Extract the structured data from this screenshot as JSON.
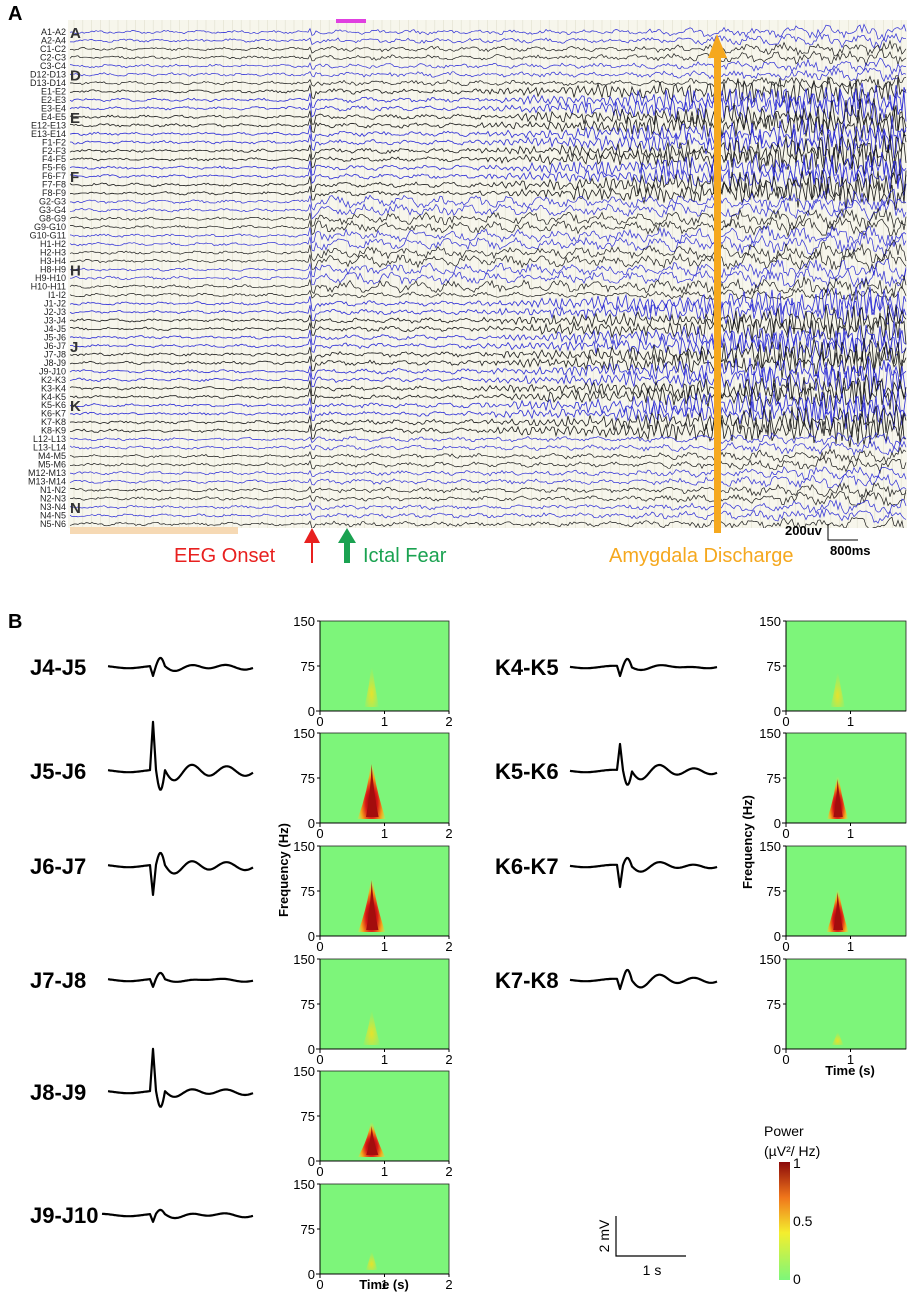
{
  "panel_a": {
    "letter": "A",
    "channels": [
      "A1-A2",
      "A2-A4",
      "C1-C2",
      "C2-C3",
      "C3-C4",
      "D12-D13",
      "D13-D14",
      "E1-E2",
      "E2-E3",
      "E3-E4",
      "E4-E5",
      "E12-E13",
      "E13-E14",
      "F1-F2",
      "F2-F3",
      "F4-F5",
      "F5-F6",
      "F6-F7",
      "F7-F8",
      "F8-F9",
      "G2-G3",
      "G3-G4",
      "G8-G9",
      "G9-G10",
      "G10-G11",
      "H1-H2",
      "H2-H3",
      "H3-H4",
      "H8-H9",
      "H9-H10",
      "H10-H11",
      "I1-I2",
      "J1-J2",
      "J2-J3",
      "J3-J4",
      "J4-J5",
      "J5-J6",
      "J6-J7",
      "J7-J8",
      "J8-J9",
      "J9-J10",
      "K2-K3",
      "K3-K4",
      "K4-K5",
      "K5-K6",
      "K6-K7",
      "K7-K8",
      "K8-K9",
      "L12-L13",
      "L13-L14",
      "M4-M5",
      "M5-M6",
      "M12-M13",
      "M13-M14",
      "N1-N2",
      "N2-N3",
      "N3-N4",
      "N4-N5",
      "N5-N6"
    ],
    "group_letters": [
      {
        "letter": "A",
        "channel": "A1-A2"
      },
      {
        "letter": "D",
        "channel": "D12-D13"
      },
      {
        "letter": "E",
        "channel": "E4-E5"
      },
      {
        "letter": "F",
        "channel": "F6-F7"
      },
      {
        "letter": "H",
        "channel": "H8-H9"
      },
      {
        "letter": "J",
        "channel": "J6-J7"
      },
      {
        "letter": "K",
        "channel": "K5-K6"
      },
      {
        "letter": "N",
        "channel": "N3-N4"
      }
    ],
    "annotations": {
      "eeg_onset": "EEG Onset",
      "ictal_fear": "Ictal Fear",
      "amygdala_discharge": "Amygdala Discharge"
    },
    "scale": {
      "amplitude": "200uv",
      "time": "800ms"
    },
    "colors": {
      "trace_blue": "#2b2bd6",
      "trace_black": "#1a1a1a",
      "background": "#f7f6ec",
      "onset": "#e8201f",
      "fear": "#1aa251",
      "amygdala": "#f5a81e"
    }
  },
  "panel_b": {
    "letter": "B",
    "j_channels": [
      "J4-J5",
      "J5-J6",
      "J6-J7",
      "J7-J8",
      "J8-J9",
      "J9-J10"
    ],
    "k_channels": [
      "K4-K5",
      "K5-K6",
      "K6-K7",
      "K7-K8"
    ],
    "scale_bar": {
      "amplitude": "2 mV",
      "time": "1 s"
    },
    "colorbar": {
      "title_line1": "Power",
      "title_line2": "(µV²/ Hz)",
      "ticks": [
        "1",
        "0.5",
        "0"
      ]
    }
  },
  "chart_data": [
    {
      "type": "heatmap",
      "title": "",
      "description": "Time-frequency spectrograms for J channels",
      "xlabel": "Time (s)",
      "ylabel": "Frequency (Hz)",
      "xlim": [
        0,
        2
      ],
      "ylim": [
        0,
        150
      ],
      "xticks": [
        "0",
        "1",
        "2"
      ],
      "yticks": [
        "0",
        "75",
        "150"
      ],
      "series": [
        {
          "name": "J4-J5",
          "peak_time": 0.8,
          "peak_freq_top": 80,
          "peak_intensity": 0.25
        },
        {
          "name": "J5-J6",
          "peak_time": 0.8,
          "peak_freq_top": 115,
          "peak_intensity": 1.0
        },
        {
          "name": "J6-J7",
          "peak_time": 0.8,
          "peak_freq_top": 110,
          "peak_intensity": 0.95
        },
        {
          "name": "J7-J8",
          "peak_time": 0.8,
          "peak_freq_top": 70,
          "peak_intensity": 0.4
        },
        {
          "name": "J8-J9",
          "peak_time": 0.8,
          "peak_freq_top": 75,
          "peak_intensity": 0.95
        },
        {
          "name": "J9-J10",
          "peak_time": 0.8,
          "peak_freq_top": 40,
          "peak_intensity": 0.1
        }
      ]
    },
    {
      "type": "heatmap",
      "title": "",
      "description": "Time-frequency spectrograms for K channels",
      "xlabel": "Time (s)",
      "ylabel": "Frequency (Hz)",
      "xlim": [
        0,
        2
      ],
      "ylim": [
        0,
        150
      ],
      "xticks": [
        "0",
        "1"
      ],
      "yticks": [
        "0",
        "75",
        "150"
      ],
      "series": [
        {
          "name": "K4-K5",
          "peak_time": 0.8,
          "peak_freq_top": 70,
          "peak_intensity": 0.25
        },
        {
          "name": "K5-K6",
          "peak_time": 0.8,
          "peak_freq_top": 90,
          "peak_intensity": 0.6
        },
        {
          "name": "K6-K7",
          "peak_time": 0.8,
          "peak_freq_top": 90,
          "peak_intensity": 0.65
        },
        {
          "name": "K7-K8",
          "peak_time": 0.8,
          "peak_freq_top": 30,
          "peak_intensity": 0.1
        }
      ]
    }
  ]
}
